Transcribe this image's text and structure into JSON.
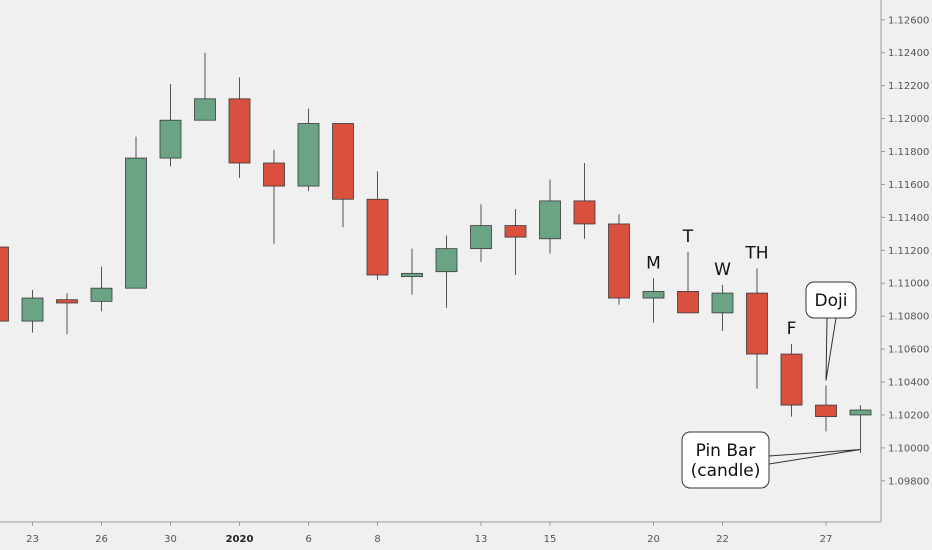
{
  "chart_data": {
    "type": "candlestick",
    "y_axis": {
      "min": 1.0955,
      "max": 1.1272,
      "ticks": [
        "1.09800",
        "1.10000",
        "1.10200",
        "1.10400",
        "1.10600",
        "1.10800",
        "1.11000",
        "1.11200",
        "1.11400",
        "1.11600",
        "1.11800",
        "1.12000",
        "1.12200",
        "1.12400",
        "1.12600"
      ],
      "position": "right"
    },
    "x_axis": {
      "ticks": [
        {
          "label": "23",
          "index": 1,
          "bold": false
        },
        {
          "label": "26",
          "index": 3,
          "bold": false
        },
        {
          "label": "30",
          "index": 5,
          "bold": false
        },
        {
          "label": "2020",
          "index": 7,
          "bold": true
        },
        {
          "label": "6",
          "index": 9,
          "bold": false
        },
        {
          "label": "8",
          "index": 11,
          "bold": false
        },
        {
          "label": "13",
          "index": 14,
          "bold": false
        },
        {
          "label": "15",
          "index": 16,
          "bold": false
        },
        {
          "label": "20",
          "index": 19,
          "bold": false
        },
        {
          "label": "22",
          "index": 21,
          "bold": false
        },
        {
          "label": "27",
          "index": 24,
          "bold": false
        }
      ]
    },
    "candles": [
      {
        "open": 1.1122,
        "high": 1.1123,
        "low": 1.1077,
        "close": 1.1077
      },
      {
        "open": 1.1077,
        "high": 1.1096,
        "low": 1.107,
        "close": 1.1091
      },
      {
        "open": 1.109,
        "high": 1.1094,
        "low": 1.1069,
        "close": 1.1088
      },
      {
        "open": 1.1089,
        "high": 1.111,
        "low": 1.1083,
        "close": 1.1097
      },
      {
        "open": 1.1097,
        "high": 1.1189,
        "low": 1.1097,
        "close": 1.1176
      },
      {
        "open": 1.1176,
        "high": 1.1221,
        "low": 1.1171,
        "close": 1.1199
      },
      {
        "open": 1.1199,
        "high": 1.124,
        "low": 1.1199,
        "close": 1.1212
      },
      {
        "open": 1.1212,
        "high": 1.1225,
        "low": 1.1164,
        "close": 1.1173
      },
      {
        "open": 1.1173,
        "high": 1.1181,
        "low": 1.1124,
        "close": 1.1159
      },
      {
        "open": 1.1159,
        "high": 1.1206,
        "low": 1.1156,
        "close": 1.1197
      },
      {
        "open": 1.1197,
        "high": 1.1197,
        "low": 1.1134,
        "close": 1.1151
      },
      {
        "open": 1.1151,
        "high": 1.1168,
        "low": 1.1102,
        "close": 1.1105
      },
      {
        "open": 1.1104,
        "high": 1.1121,
        "low": 1.1093,
        "close": 1.1106
      },
      {
        "open": 1.1107,
        "high": 1.1129,
        "low": 1.1085,
        "close": 1.1121
      },
      {
        "open": 1.1121,
        "high": 1.1148,
        "low": 1.1113,
        "close": 1.1135
      },
      {
        "open": 1.1135,
        "high": 1.1145,
        "low": 1.1105,
        "close": 1.1128
      },
      {
        "open": 1.1127,
        "high": 1.1163,
        "low": 1.1118,
        "close": 1.115
      },
      {
        "open": 1.115,
        "high": 1.1173,
        "low": 1.1127,
        "close": 1.1136
      },
      {
        "open": 1.1136,
        "high": 1.1142,
        "low": 1.1087,
        "close": 1.1091
      },
      {
        "open": 1.1091,
        "high": 1.1103,
        "low": 1.1076,
        "close": 1.1095
      },
      {
        "open": 1.1095,
        "high": 1.1119,
        "low": 1.1082,
        "close": 1.1082
      },
      {
        "open": 1.1082,
        "high": 1.1099,
        "low": 1.1071,
        "close": 1.1094
      },
      {
        "open": 1.1094,
        "high": 1.1109,
        "low": 1.1036,
        "close": 1.1057
      },
      {
        "open": 1.1057,
        "high": 1.1063,
        "low": 1.1019,
        "close": 1.1026
      },
      {
        "open": 1.1026,
        "high": 1.1038,
        "low": 1.101,
        "close": 1.1019
      },
      {
        "open": 1.102,
        "high": 1.1026,
        "low": 1.0997,
        "close": 1.1023
      }
    ],
    "annotations": [
      {
        "text": "M",
        "candle": 19
      },
      {
        "text": "T",
        "candle": 20
      },
      {
        "text": "W",
        "candle": 21
      },
      {
        "text": "TH",
        "candle": 22
      },
      {
        "text": "F",
        "candle": 23
      }
    ],
    "callouts": [
      {
        "lines": [
          "Doji"
        ],
        "target_candle": 24,
        "target_price": 1.1041
      },
      {
        "lines": [
          "Pin Bar",
          "(candle)"
        ],
        "target_candle": 25,
        "target_price": 1.0999
      }
    ],
    "colors": {
      "up": "#6aa485",
      "down": "#d9503f",
      "outline": "#3a3a3a",
      "background": "#f0f0f0",
      "axis_text": "#555555"
    }
  }
}
